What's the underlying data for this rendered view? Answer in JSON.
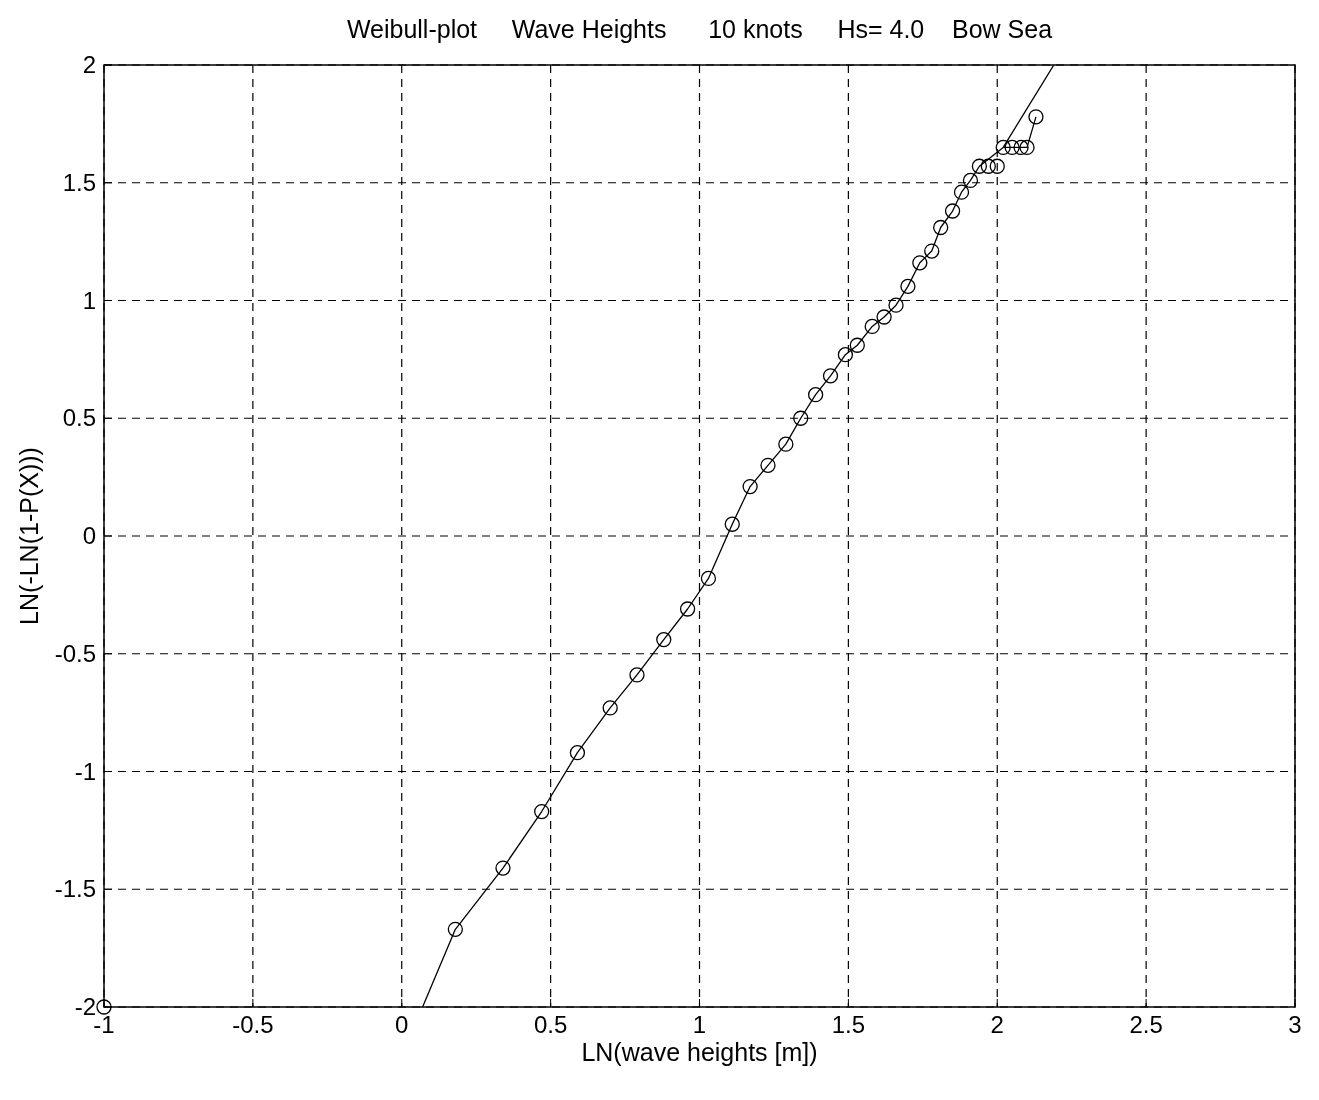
{
  "chart_data": {
    "type": "scatter",
    "title": "Weibull-plot     Wave Heights      10 knots     Hs= 4.0    Bow Sea",
    "xlabel": "LN(wave heights [m])",
    "ylabel": "LN(-LN(1-P(X)))",
    "xlim": [
      -1,
      3
    ],
    "ylim": [
      -2,
      2
    ],
    "xticks": [
      -1,
      -0.5,
      0,
      0.5,
      1,
      1.5,
      2,
      2.5,
      3
    ],
    "yticks": [
      -2,
      -1.5,
      -1,
      -0.5,
      0,
      0.5,
      1,
      1.5,
      2
    ],
    "grid": true,
    "series": [
      {
        "type": "scatter",
        "color": "#000000",
        "marker": "circle",
        "x": [
          -1,
          0.18,
          0.34,
          0.47,
          0.59,
          0.7,
          0.79,
          0.88,
          0.96,
          1.03,
          1.11,
          1.17,
          1.23,
          1.29,
          1.34,
          1.39,
          1.44,
          1.49,
          1.53,
          1.58,
          1.62,
          1.66,
          1.7,
          1.74,
          1.78,
          1.81,
          1.85,
          1.88,
          1.91,
          1.94,
          1.97,
          2,
          2.02,
          2.05,
          2.08,
          2.1,
          2.13
        ],
        "values": [
          -2,
          -1.67,
          -1.41,
          -1.17,
          -0.92,
          -0.73,
          -0.59,
          -0.44,
          -0.31,
          -0.18,
          0.05,
          0.21,
          0.3,
          0.39,
          0.5,
          0.6,
          0.68,
          0.77,
          0.81,
          0.89,
          0.93,
          0.98,
          1.06,
          1.16,
          1.21,
          1.31,
          1.38,
          1.46,
          1.51,
          1.57,
          1.57,
          1.57,
          1.65,
          1.65,
          1.65,
          1.65,
          1.78
        ]
      },
      {
        "type": "line",
        "color": "#000000",
        "marker": "none",
        "line_style": "solid",
        "x": [
          0.07,
          0.18,
          0.34,
          0.47,
          0.59,
          0.7,
          0.79,
          0.88,
          0.96,
          1.03,
          1.11,
          1.17,
          1.23,
          1.29,
          1.34,
          1.39,
          1.44,
          1.49,
          1.53,
          1.58,
          1.62,
          1.66,
          1.7,
          1.74,
          1.78,
          1.81,
          1.85,
          1.88,
          1.91,
          1.94,
          2.02,
          2.19
        ],
        "values": [
          -2,
          -1.67,
          -1.41,
          -1.17,
          -0.92,
          -0.73,
          -0.59,
          -0.44,
          -0.31,
          -0.18,
          0.05,
          0.21,
          0.3,
          0.39,
          0.5,
          0.6,
          0.68,
          0.77,
          0.81,
          0.89,
          0.93,
          0.98,
          1.06,
          1.16,
          1.21,
          1.31,
          1.38,
          1.46,
          1.51,
          1.57,
          1.65,
          2
        ]
      },
      {
        "type": "line",
        "color": "#000000",
        "marker": "none",
        "line_style": "solid",
        "x": [
          2.02,
          2.1,
          2.13
        ],
        "values": [
          1.65,
          1.65,
          1.78
        ]
      }
    ]
  }
}
